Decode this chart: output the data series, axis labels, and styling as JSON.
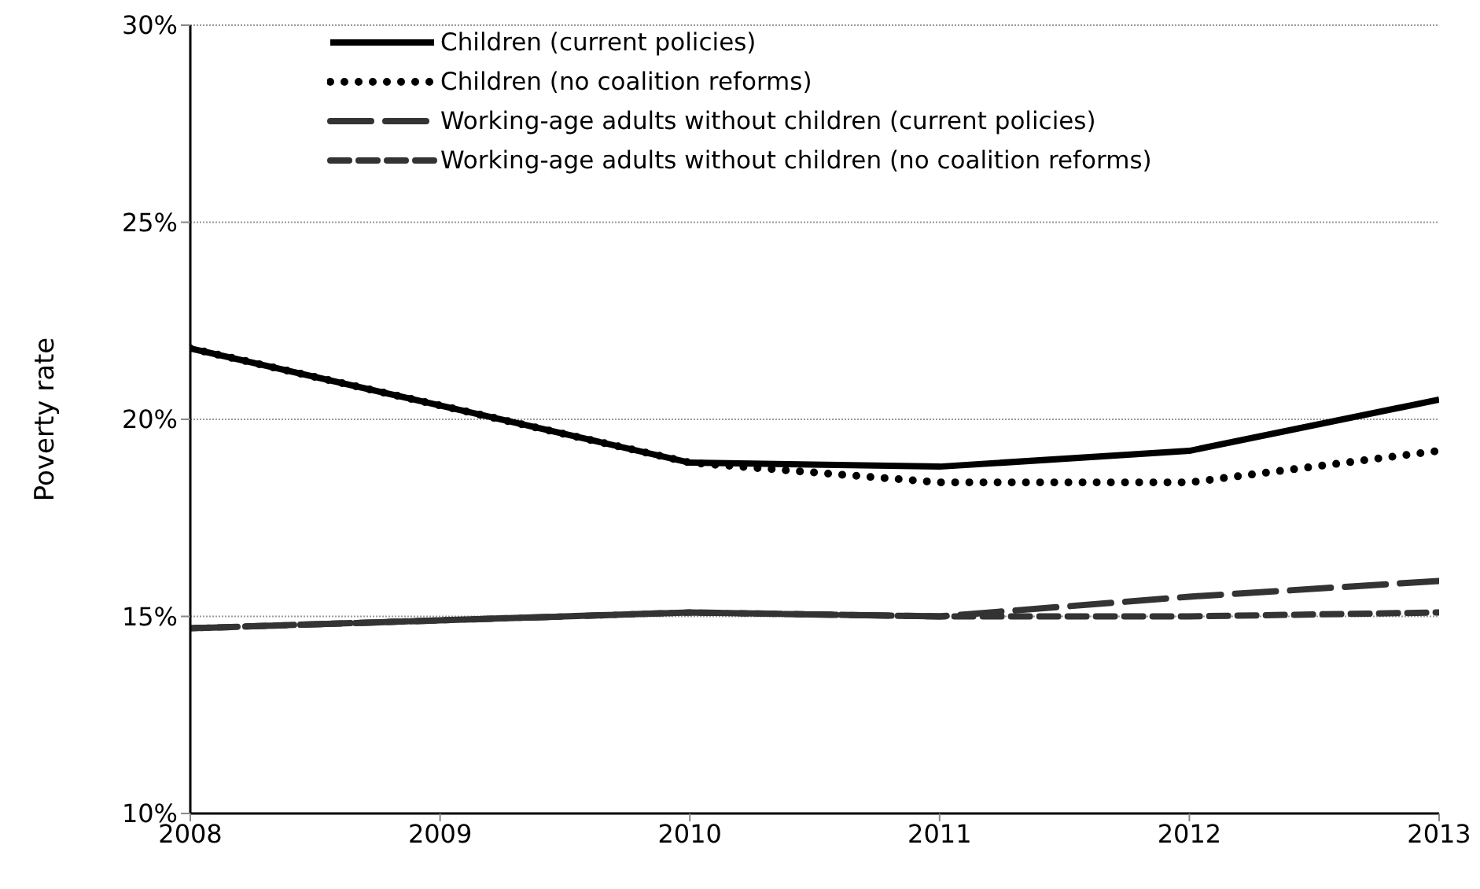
{
  "chart_data": {
    "type": "line",
    "ylabel": "Poverty rate",
    "x": [
      2008,
      2009,
      2010,
      2011,
      2012,
      2013
    ],
    "xlim": [
      2008,
      2013
    ],
    "xticks": [
      2008,
      2009,
      2010,
      2011,
      2012,
      2013
    ],
    "ylim": [
      10,
      30
    ],
    "yticks": [
      {
        "value": 10,
        "label": "10%"
      },
      {
        "value": 15,
        "label": "15%"
      },
      {
        "value": 20,
        "label": "20%"
      },
      {
        "value": 25,
        "label": "25%"
      },
      {
        "value": 30,
        "label": "30%"
      }
    ],
    "grid": "y",
    "legend": "top",
    "marker": "none",
    "series": [
      {
        "name": "Children (current policies)",
        "color": "#000000",
        "line_style": "solid",
        "values": [
          21.8,
          20.35,
          18.9,
          18.8,
          19.2,
          20.5
        ]
      },
      {
        "name": "Children (no coalition reforms)",
        "color": "#000000",
        "line_style": "dotted",
        "values": [
          21.8,
          20.35,
          18.9,
          18.4,
          18.4,
          19.2
        ]
      },
      {
        "name": "Working-age adults without children (current policies)",
        "color": "#333333",
        "line_style": "dashed",
        "values": [
          14.7,
          14.9,
          15.1,
          15.0,
          15.5,
          15.9
        ]
      },
      {
        "name": "Working-age adults without children (no coalition reforms)",
        "color": "#333333",
        "line_style": "dashed",
        "values": [
          14.7,
          14.9,
          15.1,
          15.0,
          15.0,
          15.1
        ]
      }
    ]
  }
}
